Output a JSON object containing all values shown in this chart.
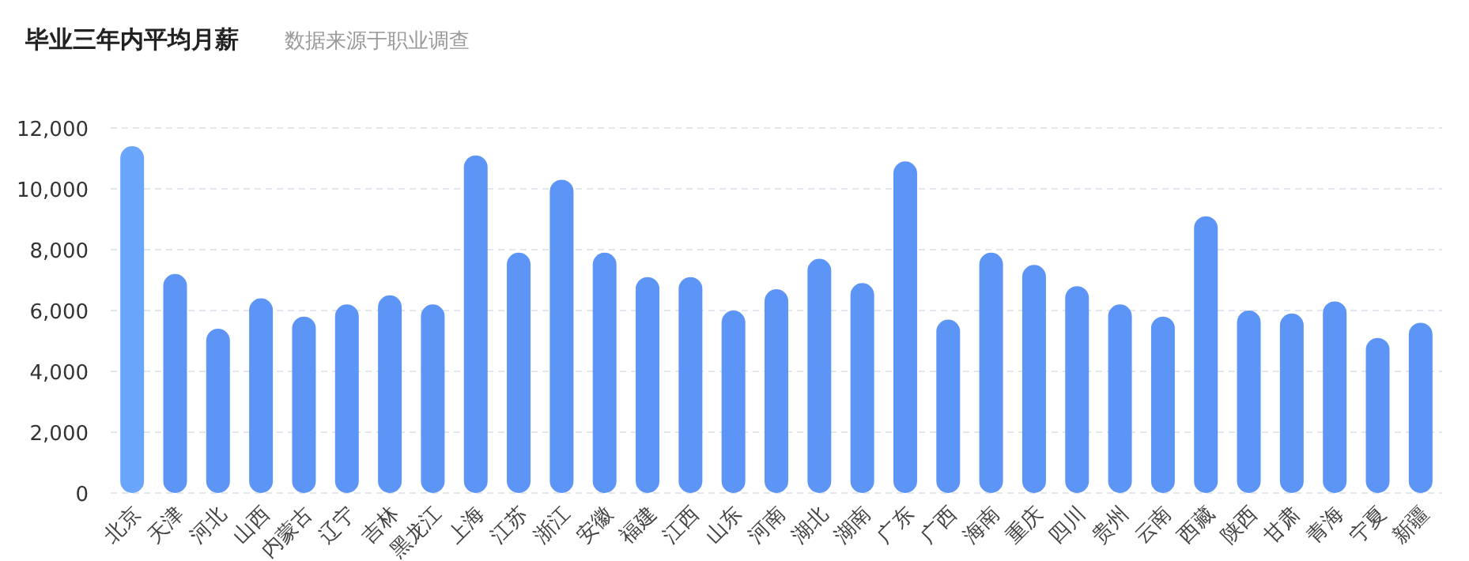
{
  "chart_data": {
    "type": "bar",
    "title": "毕业三年内平均月薪",
    "subtitle": "数据来源于职业调查",
    "categories": [
      "北京",
      "天津",
      "河北",
      "山西",
      "内蒙古",
      "辽宁",
      "吉林",
      "黑龙江",
      "上海",
      "江苏",
      "浙江",
      "安徽",
      "福建",
      "江西",
      "山东",
      "河南",
      "湖北",
      "湖南",
      "广东",
      "广西",
      "海南",
      "重庆",
      "四川",
      "贵州",
      "云南",
      "西藏",
      "陕西",
      "甘肃",
      "青海",
      "宁夏",
      "新疆"
    ],
    "values": [
      11400,
      7200,
      5400,
      6400,
      5800,
      6200,
      6500,
      6200,
      11100,
      7900,
      10300,
      7900,
      7100,
      7100,
      6000,
      6700,
      7700,
      6900,
      10900,
      5700,
      7900,
      7500,
      6800,
      6200,
      5800,
      9100,
      6000,
      5900,
      6300,
      5100,
      5600
    ],
    "colors": [
      "#69a5fb",
      "#5d95f7",
      "#5d95f7",
      "#5d95f7",
      "#5d95f7",
      "#5d95f7",
      "#5d95f7",
      "#5d95f7",
      "#5d95f7",
      "#5d95f7",
      "#5d95f7",
      "#5d95f7",
      "#5d95f7",
      "#5d95f7",
      "#5d95f7",
      "#5d95f7",
      "#5d95f7",
      "#5d95f7",
      "#5d95f7",
      "#5d95f7",
      "#5d95f7",
      "#5d95f7",
      "#5d95f7",
      "#5d95f7",
      "#5d95f7",
      "#5d95f7",
      "#5d95f7",
      "#5d95f7",
      "#5d95f7",
      "#5d95f7",
      "#5d95f7"
    ],
    "ylim": [
      0,
      12000
    ],
    "yticks": [
      0,
      {
        "value": 2000,
        "label": "2,000"
      },
      {
        "value": 4000,
        "label": "4,000"
      },
      {
        "value": 6000,
        "label": "6,000"
      },
      {
        "value": 8000,
        "label": "8,000"
      },
      {
        "value": 10000,
        "label": "10,000"
      },
      {
        "value": 12000,
        "label": "12,000"
      }
    ],
    "grid": "y"
  }
}
